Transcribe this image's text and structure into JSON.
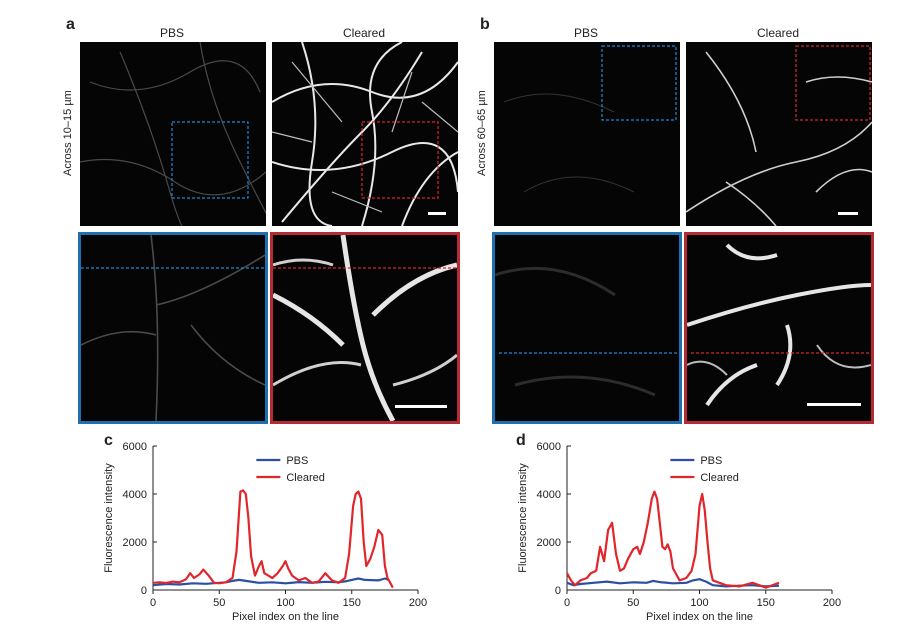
{
  "panels": {
    "a": {
      "letter": "a",
      "row_label": "Across 10–15 µm",
      "col_left": "PBS",
      "col_right": "Cleared"
    },
    "b": {
      "letter": "b",
      "row_label": "Across 60–65 µm",
      "col_left": "PBS",
      "col_right": "Cleared"
    }
  },
  "colors": {
    "pbs": "#2b4fa3",
    "cleared": "#e0262b",
    "blue_box": "#1f88d6",
    "red_box": "#d2282e",
    "blue_frame": "#1f6fb3",
    "red_frame": "#b52a33"
  },
  "chart_data": [
    {
      "panel": "c",
      "type": "line",
      "xlabel": "Pixel index on the line",
      "ylabel": "Fluorescence intensity",
      "xlim": [
        0,
        200
      ],
      "ylim": [
        0,
        6000
      ],
      "xticks": [
        0,
        50,
        100,
        150,
        200
      ],
      "yticks": [
        0,
        2000,
        4000,
        6000
      ],
      "legend_position": "top-center",
      "series": [
        {
          "name": "PBS",
          "color": "#2b4fa3",
          "x": [
            0,
            10,
            20,
            30,
            40,
            50,
            55,
            60,
            65,
            70,
            80,
            90,
            100,
            110,
            120,
            130,
            140,
            145,
            150,
            155,
            160,
            170,
            175,
            178
          ],
          "y": [
            200,
            250,
            230,
            280,
            260,
            300,
            320,
            380,
            420,
            380,
            300,
            320,
            280,
            330,
            300,
            340,
            320,
            360,
            420,
            480,
            420,
            400,
            480,
            420
          ]
        },
        {
          "name": "Cleared",
          "color": "#e0262b",
          "x": [
            0,
            5,
            10,
            15,
            20,
            25,
            28,
            31,
            35,
            38,
            42,
            46,
            50,
            55,
            60,
            63,
            66,
            68,
            70,
            72,
            74,
            77,
            80,
            82,
            84,
            87,
            90,
            94,
            98,
            100,
            102,
            105,
            110,
            115,
            120,
            125,
            130,
            135,
            140,
            145,
            148,
            151,
            153,
            155,
            157,
            159,
            161,
            164,
            167,
            170,
            173,
            175,
            177,
            179,
            181
          ],
          "y": [
            300,
            320,
            290,
            350,
            320,
            450,
            700,
            500,
            650,
            850,
            600,
            300,
            280,
            320,
            500,
            1600,
            4100,
            4150,
            4000,
            3000,
            1400,
            600,
            1000,
            1200,
            700,
            600,
            500,
            700,
            1000,
            1200,
            900,
            600,
            400,
            500,
            300,
            350,
            700,
            400,
            300,
            500,
            1500,
            3500,
            4000,
            4100,
            3800,
            2000,
            1000,
            1300,
            1800,
            2500,
            2300,
            1000,
            500,
            300,
            100
          ]
        }
      ]
    },
    {
      "panel": "d",
      "type": "line",
      "xlabel": "Pixel index on the line",
      "ylabel": "Fluorescence intensity",
      "xlim": [
        0,
        200
      ],
      "ylim": [
        0,
        6000
      ],
      "xticks": [
        0,
        50,
        100,
        150,
        200
      ],
      "yticks": [
        0,
        2000,
        4000,
        6000
      ],
      "legend_position": "top-center",
      "series": [
        {
          "name": "PBS",
          "color": "#2b4fa3",
          "x": [
            0,
            5,
            10,
            20,
            30,
            40,
            50,
            60,
            65,
            70,
            80,
            90,
            95,
            100,
            105,
            110,
            120,
            130,
            140,
            150,
            160
          ],
          "y": [
            300,
            200,
            250,
            300,
            350,
            280,
            320,
            300,
            380,
            330,
            280,
            300,
            400,
            450,
            350,
            200,
            150,
            180,
            200,
            150,
            180
          ]
        },
        {
          "name": "Cleared",
          "color": "#e0262b",
          "x": [
            0,
            3,
            6,
            10,
            15,
            18,
            22,
            25,
            28,
            31,
            34,
            37,
            40,
            43,
            46,
            50,
            53,
            55,
            58,
            61,
            64,
            66,
            68,
            70,
            72,
            74,
            76,
            78,
            80,
            85,
            90,
            94,
            97,
            100,
            102,
            104,
            106,
            108,
            110,
            115,
            120,
            130,
            140,
            150,
            160
          ],
          "y": [
            700,
            400,
            200,
            400,
            500,
            700,
            800,
            1800,
            1200,
            2500,
            2800,
            1500,
            800,
            900,
            1300,
            1700,
            1800,
            1500,
            2000,
            2800,
            3800,
            4100,
            3800,
            2800,
            1800,
            1700,
            1900,
            1600,
            900,
            400,
            500,
            800,
            1500,
            3500,
            4000,
            3300,
            2000,
            900,
            400,
            300,
            200,
            150,
            300,
            100,
            300
          ]
        }
      ]
    }
  ]
}
